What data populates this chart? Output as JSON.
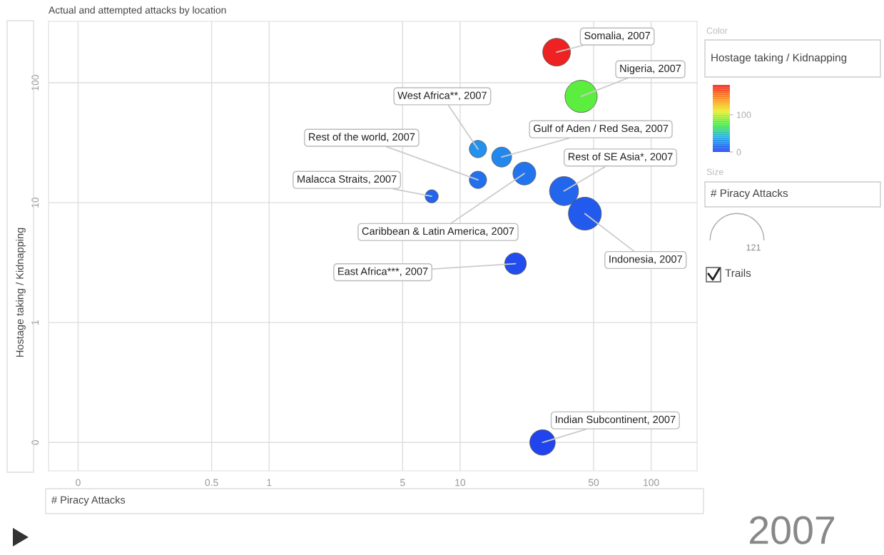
{
  "chart_data": {
    "type": "bubble",
    "title": "Actual and attempted attacks by location",
    "xlabel": "# Piracy Attacks",
    "ylabel": "Hostage taking / Kidnapping",
    "clabel": "Hostage taking / Kidnapping",
    "log": "xy",
    "grid": true,
    "xlim": [
      0.07,
      174
    ],
    "ylim": [
      0.058,
      325
    ],
    "xticks": [
      {
        "value": 0.1,
        "label": "0"
      },
      0.5,
      1,
      5,
      10,
      50,
      100
    ],
    "yticks": [
      {
        "value": 0.1,
        "label": "0"
      },
      1,
      10,
      100
    ],
    "clim": [
      0,
      180
    ],
    "cticks": [
      0,
      100
    ],
    "size_legend": [
      121
    ],
    "series": [
      {
        "x": [
          32,
          43,
          12.4,
          16.5,
          12.4,
          21.7,
          35,
          45,
          7.1,
          19.5,
          27
        ],
        "values": [
          180,
          77,
          28,
          24,
          15.5,
          17.5,
          12.5,
          8.1,
          11.3,
          3.1,
          0.1
        ],
        "sizes": [
          32,
          43,
          12.4,
          16.5,
          12.4,
          21.7,
          35,
          45,
          7.1,
          19.5,
          27
        ],
        "cvalues": [
          180,
          77,
          28,
          24,
          15.5,
          17.5,
          12.5,
          8.1,
          11.3,
          3.1,
          0
        ]
      }
    ],
    "annotations": [
      {
        "text": "Somalia, 2007",
        "x": 32,
        "y": 180
      },
      {
        "text": "Nigeria, 2007",
        "x": 43,
        "y": 77
      },
      {
        "text": "West Africa**, 2007",
        "x": 12.4,
        "y": 28
      },
      {
        "text": "Gulf of Aden / Red Sea, 2007",
        "x": 16.5,
        "y": 24
      },
      {
        "text": "Rest of the world, 2007",
        "x": 12.4,
        "y": 15.5
      },
      {
        "text": "Caribbean & Latin America, 2007",
        "x": 21.7,
        "y": 17.5
      },
      {
        "text": "Rest of SE Asia*, 2007",
        "x": 35,
        "y": 12.5
      },
      {
        "text": "Indonesia, 2007",
        "x": 45,
        "y": 8.1
      },
      {
        "text": "Malacca Straits, 2007",
        "x": 7.1,
        "y": 11.3
      },
      {
        "text": "East Africa***, 2007",
        "x": 19.5,
        "y": 3.1
      },
      {
        "text": "Indian Subcontinent, 2007",
        "x": 27,
        "y": 0.1
      },
      "Color",
      "Size",
      "# Piracy Attacks",
      "Trails",
      "2007"
    ]
  }
}
